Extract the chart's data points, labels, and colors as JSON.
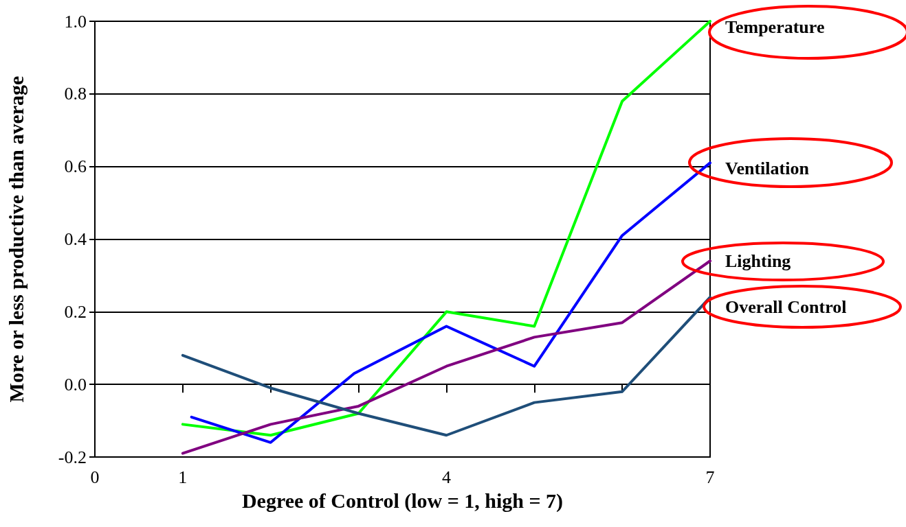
{
  "chart_data": {
    "type": "line",
    "xlabel": "Degree of Control (low = 1, high = 7)",
    "ylabel": "More or less productive than average",
    "xlim": [
      0,
      7
    ],
    "xticks": [
      0,
      1,
      {
        "value": 2,
        "label": null
      },
      {
        "value": 3,
        "label": null
      },
      4,
      {
        "value": 5,
        "label": null
      },
      {
        "value": 6,
        "label": null
      },
      7
    ],
    "ylim": [
      -0.2,
      1.0
    ],
    "yticks": [
      {
        "value": -0.2,
        "label": "-0.2"
      },
      {
        "value": 0,
        "label": "0.0"
      },
      {
        "value": 0.2,
        "label": "0.2"
      },
      {
        "value": 0.4,
        "label": "0.4"
      },
      {
        "value": 0.6,
        "label": "0.6"
      },
      {
        "value": 0.8,
        "label": "0.8"
      },
      {
        "value": 1.0,
        "label": "1.0"
      }
    ],
    "grid": "y",
    "legend": false,
    "marker": "none",
    "line_style": "solid",
    "series": [
      {
        "name": "Temperature",
        "color": "#00ff00",
        "x": [
          1,
          2,
          3,
          4,
          5,
          6,
          7
        ],
        "values": [
          -0.11,
          -0.14,
          -0.08,
          0.2,
          0.16,
          0.78,
          1.0
        ]
      },
      {
        "name": "Ventilation",
        "color": "#0000ff",
        "x": [
          1.1,
          2,
          2.95,
          4,
          5,
          6,
          7
        ],
        "values": [
          -0.09,
          -0.16,
          0.03,
          0.16,
          0.05,
          0.41,
          0.61
        ]
      },
      {
        "name": "Lighting",
        "color": "#800080",
        "x": [
          1,
          2,
          3,
          4,
          5,
          6,
          7
        ],
        "values": [
          -0.19,
          -0.11,
          -0.06,
          0.05,
          0.13,
          0.17,
          0.34
        ]
      },
      {
        "name": "Overall Control",
        "color": "#1f4e79",
        "x": [
          1,
          2,
          3,
          4,
          5,
          6,
          7
        ],
        "values": [
          0.08,
          -0.01,
          -0.08,
          -0.14,
          -0.05,
          -0.02,
          0.24
        ]
      }
    ]
  }
}
